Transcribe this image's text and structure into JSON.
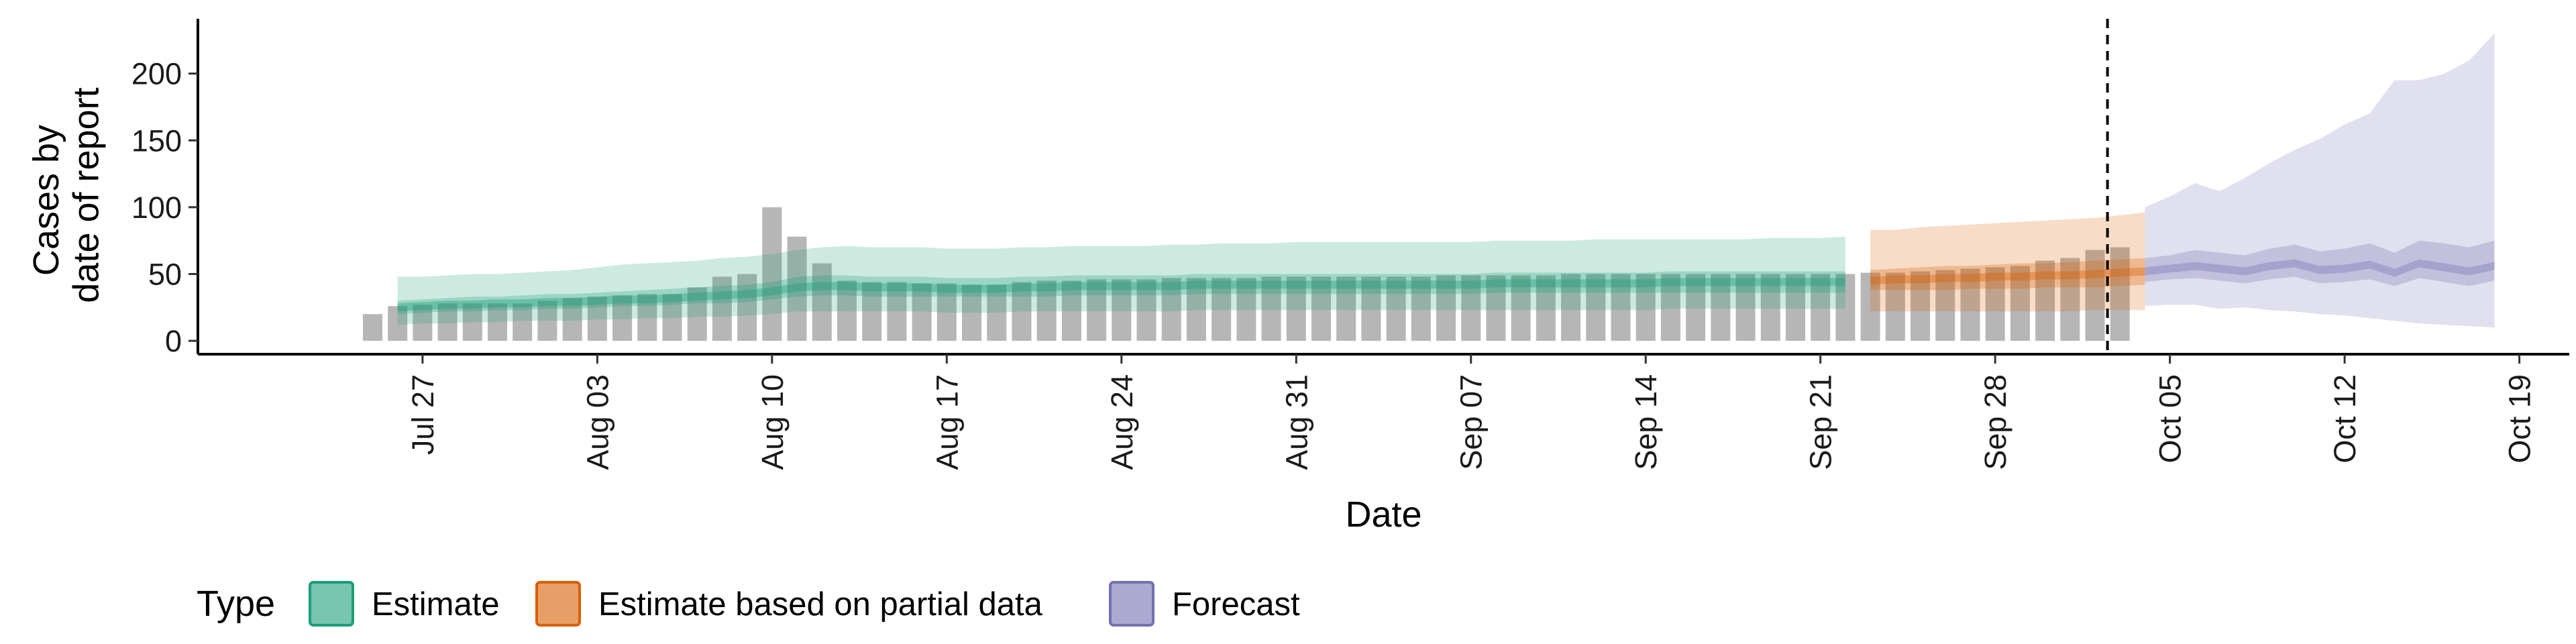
{
  "chart_data": {
    "type": "bar",
    "xlabel": "Date",
    "ylabel_lines": [
      "Cases by",
      "date of report"
    ],
    "x_range": [
      "2020-07-18",
      "2020-10-21"
    ],
    "ylim": [
      -10,
      240
    ],
    "y_ticks": [
      0,
      50,
      100,
      150,
      200
    ],
    "x_ticks": [
      {
        "date": "2020-07-27",
        "label": "Jul 27"
      },
      {
        "date": "2020-08-03",
        "label": "Aug 03"
      },
      {
        "date": "2020-08-10",
        "label": "Aug 10"
      },
      {
        "date": "2020-08-17",
        "label": "Aug 17"
      },
      {
        "date": "2020-08-24",
        "label": "Aug 24"
      },
      {
        "date": "2020-08-31",
        "label": "Aug 31"
      },
      {
        "date": "2020-09-07",
        "label": "Sep 07"
      },
      {
        "date": "2020-09-14",
        "label": "Sep 14"
      },
      {
        "date": "2020-09-21",
        "label": "Sep 21"
      },
      {
        "date": "2020-09-28",
        "label": "Sep 28"
      },
      {
        "date": "2020-10-05",
        "label": "Oct 05"
      },
      {
        "date": "2020-10-12",
        "label": "Oct 12"
      },
      {
        "date": "2020-10-19",
        "label": "Oct 19"
      }
    ],
    "forecast_start_date": "2020-10-03",
    "grid": false,
    "legend_position": "bottom",
    "legend": {
      "title": "Type",
      "entries": [
        {
          "name": "Estimate",
          "fill": "#1B9E77",
          "border": "#1B9E77"
        },
        {
          "name": "Estimate based on partial data",
          "fill": "#D95F02",
          "border": "#D95F02"
        },
        {
          "name": "Forecast",
          "fill": "#7570B3",
          "border": "#7570B3"
        }
      ]
    },
    "bar_color": "#A9A9A9",
    "reported_cases": {
      "start_date": "2020-07-25",
      "values": [
        20,
        26,
        27,
        28,
        28,
        28,
        28,
        30,
        32,
        33,
        34,
        35,
        35,
        40,
        48,
        50,
        100,
        78,
        58,
        45,
        44,
        44,
        43,
        43,
        42,
        42,
        44,
        45,
        45,
        46,
        46,
        46,
        47,
        47,
        47,
        47,
        48,
        48,
        48,
        48,
        48,
        48,
        48,
        49,
        49,
        49,
        49,
        49,
        50,
        50,
        50,
        50,
        50,
        50,
        50,
        50,
        50,
        50,
        50,
        50,
        51,
        51,
        52,
        53,
        54,
        55,
        56,
        60,
        62,
        68,
        70
      ]
    },
    "series": [
      {
        "name": "Estimate",
        "color": "#1B9E77",
        "start_date": "2020-07-26",
        "median": [
          25,
          26,
          27,
          27,
          28,
          28,
          29,
          29,
          30,
          31,
          31,
          32,
          33,
          34,
          35,
          37,
          40,
          41,
          41,
          40,
          40,
          40,
          39,
          39,
          39,
          40,
          40,
          41,
          41,
          41,
          41,
          41,
          42,
          42,
          42,
          42,
          42,
          42,
          42,
          42,
          42,
          42,
          42,
          42,
          43,
          43,
          43,
          43,
          43,
          43,
          43,
          44,
          44,
          44,
          44,
          44,
          44,
          44,
          44
        ],
        "lower50": [
          20,
          21,
          22,
          22,
          23,
          23,
          24,
          24,
          25,
          26,
          26,
          27,
          28,
          28,
          29,
          31,
          33,
          34,
          34,
          33,
          33,
          33,
          33,
          33,
          33,
          33,
          33,
          34,
          34,
          34,
          34,
          34,
          35,
          35,
          35,
          35,
          35,
          35,
          35,
          35,
          35,
          35,
          35,
          35,
          36,
          36,
          36,
          36,
          36,
          36,
          36,
          36,
          36,
          36,
          36,
          36,
          36,
          36,
          36
        ],
        "upper50": [
          30,
          31,
          32,
          33,
          33,
          34,
          35,
          35,
          36,
          37,
          38,
          39,
          40,
          41,
          42,
          44,
          48,
          49,
          49,
          48,
          48,
          48,
          47,
          47,
          47,
          48,
          48,
          49,
          49,
          49,
          49,
          49,
          50,
          50,
          50,
          50,
          50,
          50,
          50,
          50,
          50,
          50,
          50,
          50,
          51,
          51,
          51,
          51,
          51,
          51,
          51,
          52,
          52,
          52,
          52,
          52,
          52,
          52,
          52
        ],
        "lower90": [
          12,
          13,
          13,
          14,
          14,
          15,
          15,
          15,
          16,
          16,
          17,
          17,
          18,
          18,
          19,
          20,
          22,
          22,
          22,
          22,
          22,
          22,
          21,
          21,
          21,
          22,
          22,
          22,
          22,
          22,
          22,
          22,
          23,
          23,
          23,
          23,
          23,
          23,
          23,
          23,
          23,
          23,
          23,
          23,
          23,
          23,
          23,
          23,
          23,
          23,
          23,
          24,
          24,
          24,
          24,
          24,
          24,
          24,
          24
        ],
        "upper90": [
          48,
          48,
          49,
          50,
          50,
          51,
          52,
          53,
          55,
          57,
          58,
          59,
          60,
          62,
          63,
          65,
          68,
          70,
          71,
          70,
          70,
          70,
          69,
          69,
          69,
          70,
          70,
          71,
          71,
          71,
          71,
          72,
          72,
          73,
          73,
          73,
          74,
          74,
          74,
          74,
          74,
          74,
          74,
          74,
          75,
          75,
          75,
          75,
          76,
          76,
          76,
          76,
          76,
          76,
          76,
          77,
          77,
          77,
          78
        ]
      },
      {
        "name": "Estimate based on partial data",
        "color": "#D95F02",
        "start_date": "2020-09-23",
        "median": [
          45,
          46,
          46,
          47,
          47,
          48,
          48,
          49,
          49,
          50,
          51,
          52
        ],
        "lower50": [
          38,
          38,
          38,
          38,
          39,
          39,
          39,
          40,
          40,
          40,
          41,
          42
        ],
        "upper50": [
          53,
          54,
          55,
          56,
          56,
          57,
          58,
          58,
          59,
          60,
          61,
          62
        ],
        "lower90": [
          22,
          22,
          22,
          22,
          22,
          22,
          22,
          22,
          22,
          23,
          23,
          23
        ],
        "upper90": [
          83,
          83,
          85,
          86,
          87,
          88,
          89,
          90,
          91,
          92,
          94,
          96
        ]
      },
      {
        "name": "Forecast",
        "color": "#7570B3",
        "start_date": "2020-10-04",
        "median": [
          52,
          54,
          56,
          54,
          52,
          56,
          58,
          53,
          54,
          57,
          51,
          58,
          55,
          52,
          56
        ],
        "lower50": [
          44,
          46,
          47,
          45,
          43,
          46,
          48,
          43,
          44,
          46,
          41,
          47,
          44,
          41,
          45
        ],
        "upper50": [
          62,
          64,
          68,
          66,
          64,
          69,
          72,
          67,
          69,
          73,
          66,
          75,
          73,
          70,
          75
        ],
        "lower90": [
          26,
          27,
          27,
          24,
          25,
          23,
          22,
          20,
          19,
          17,
          15,
          13,
          12,
          11,
          10
        ],
        "upper90": [
          100,
          108,
          118,
          112,
          122,
          133,
          143,
          151,
          162,
          170,
          195,
          195,
          200,
          210,
          230
        ]
      }
    ]
  }
}
